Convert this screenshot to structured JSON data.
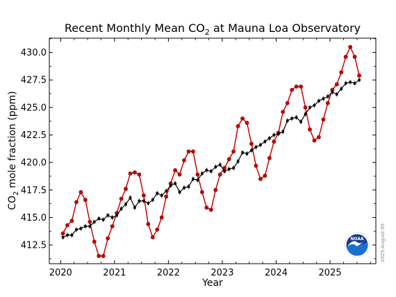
{
  "chart_data": {
    "type": "line",
    "title_prefix": "Recent Monthly Mean CO",
    "title_subscript": "2",
    "title_suffix": " at Mauna Loa Observatory",
    "xlabel": "Year",
    "ylabel_prefix": "CO",
    "ylabel_subscript": "2",
    "ylabel_suffix": " mole fraction (ppm)",
    "xlim": [
      2019.79,
      2025.85
    ],
    "ylim": [
      410.8,
      431.3
    ],
    "xticks": [
      2020,
      2021,
      2022,
      2023,
      2024,
      2025
    ],
    "xtick_labels": [
      "2020",
      "2021",
      "2022",
      "2023",
      "2024",
      "2025"
    ],
    "yticks": [
      412.5,
      415.0,
      417.5,
      420.0,
      422.5,
      425.0,
      427.5,
      430.0
    ],
    "ytick_labels": [
      "412.5",
      "415.0",
      "417.5",
      "420.0",
      "422.5",
      "425.0",
      "427.5",
      "430.0"
    ],
    "x_start": 2020.042,
    "x_step": 0.08333,
    "series": [
      {
        "name": "",
        "color": "#cc0000",
        "values": [
          413.55,
          414.3,
          414.7,
          416.4,
          417.3,
          416.6,
          414.6,
          412.8,
          411.5,
          411.5,
          413.1,
          414.2,
          415.4,
          416.7,
          417.6,
          419.0,
          419.1,
          418.9,
          417.0,
          414.4,
          413.2,
          413.9,
          415.0,
          416.9,
          418.1,
          419.3,
          418.9,
          420.2,
          421.0,
          421.0,
          418.9,
          417.3,
          415.9,
          415.7,
          417.5,
          418.9,
          419.5,
          420.3,
          421.0,
          423.3,
          424.0,
          423.6,
          421.7,
          419.7,
          418.5,
          418.8,
          420.4,
          421.9,
          422.7,
          424.6,
          425.4,
          426.6,
          426.9,
          426.9,
          425.0,
          423.0,
          422.0,
          422.3,
          423.9,
          425.4,
          426.6,
          427.1,
          428.2,
          429.6,
          430.5,
          429.6,
          427.9
        ]
      },
      {
        "name": "",
        "color": "#000000",
        "values": [
          413.2,
          413.4,
          413.4,
          413.9,
          414.0,
          414.2,
          414.2,
          414.6,
          414.9,
          414.8,
          415.2,
          415.0,
          415.2,
          415.8,
          416.2,
          416.8,
          415.9,
          416.5,
          416.5,
          416.3,
          416.6,
          417.2,
          417.0,
          417.4,
          417.9,
          418.1,
          417.3,
          417.7,
          417.8,
          418.5,
          418.4,
          419.0,
          419.3,
          419.2,
          419.6,
          419.8,
          419.2,
          419.4,
          419.5,
          420.1,
          420.9,
          420.8,
          421.1,
          421.4,
          421.6,
          421.9,
          422.2,
          422.5,
          422.6,
          422.8,
          423.8,
          424.0,
          424.1,
          423.7,
          424.4,
          425.0,
          425.2,
          425.6,
          425.8,
          426.0,
          426.4,
          426.2,
          426.7,
          427.2,
          427.3,
          427.2,
          427.5
        ]
      }
    ],
    "grid": false,
    "legend": "none"
  },
  "date_stamp": "2025-August-05",
  "logo": {
    "text": "NOAA",
    "colors": {
      "outer": "#ffffff",
      "inner_top": "#1a3a8f",
      "inner_bottom": "#1a6fd1",
      "bird": "#ffffff"
    }
  }
}
